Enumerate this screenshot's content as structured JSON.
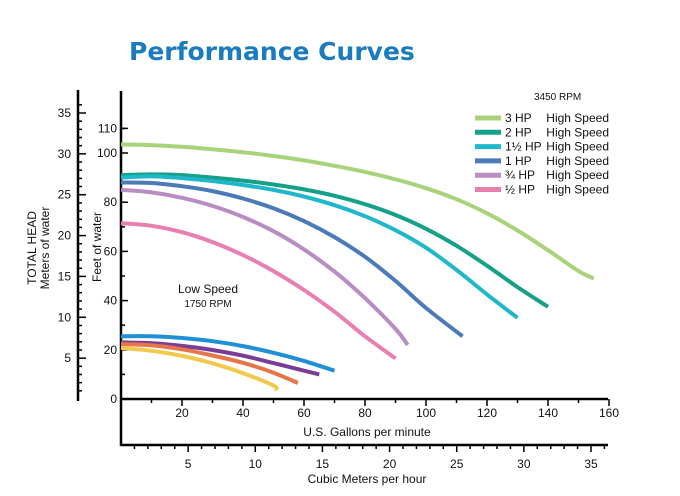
{
  "chart_data": {
    "type": "line",
    "title": "Performance Curves",
    "rpm_high": "3450 RPM",
    "low_speed_label": "Low Speed",
    "rpm_low": "1750 RPM",
    "x_primary": {
      "label": "U.S. Gallons per minute",
      "ticks": [
        "20",
        "40",
        "60",
        "80",
        "100",
        "120",
        "140",
        "160"
      ],
      "range": [
        0,
        160
      ]
    },
    "x_secondary": {
      "label": "Cubic Meters per hour",
      "ticks": [
        "5",
        "10",
        "15",
        "20",
        "25",
        "30",
        "35"
      ],
      "range": [
        0,
        36
      ]
    },
    "y_feet": {
      "label": "Feet of water",
      "ticks": [
        "0",
        "20",
        "40",
        "60",
        "80",
        "100",
        "110"
      ],
      "range": [
        0,
        120
      ]
    },
    "y_meters": {
      "label_line1": "TOTAL HEAD",
      "label_line2": "Meters of water",
      "ticks": [
        "5",
        "10",
        "15",
        "20",
        "25",
        "30",
        "35"
      ],
      "range": [
        0,
        36.6
      ]
    },
    "series": [
      {
        "name": "3 HP",
        "speed": "High Speed",
        "color": "#a9d37a",
        "x": [
          0,
          10,
          20,
          30,
          40,
          50,
          60,
          70,
          80,
          90,
          100,
          110,
          120,
          130,
          140,
          150,
          155
        ],
        "y": [
          103.5,
          103.2,
          102.5,
          101.5,
          100.3,
          98.8,
          97,
          94.8,
          92.3,
          89.3,
          85.7,
          81.2,
          75.5,
          68.5,
          60.5,
          52,
          49
        ]
      },
      {
        "name": "2 HP",
        "speed": "High Speed",
        "color": "#15a089",
        "x": [
          0,
          10,
          20,
          30,
          40,
          50,
          60,
          70,
          80,
          90,
          100,
          110,
          120,
          130,
          140
        ],
        "y": [
          91,
          91.3,
          91,
          90,
          88.8,
          87.2,
          85.2,
          82.6,
          79.2,
          74.8,
          69.2,
          62.3,
          54.2,
          45.5,
          37.5
        ]
      },
      {
        "name": "1½ HP",
        "speed": "High Speed",
        "color": "#1fb7c9",
        "x": [
          0,
          10,
          20,
          30,
          40,
          50,
          60,
          70,
          80,
          90,
          100,
          110,
          120,
          130
        ],
        "y": [
          90,
          90.5,
          89.8,
          88.6,
          87,
          85,
          82.3,
          78.8,
          74.3,
          68.6,
          61.5,
          52.5,
          42.5,
          33
        ]
      },
      {
        "name": "1 HP",
        "speed": "High Speed",
        "color": "#4a7ab8",
        "x": [
          0,
          10,
          20,
          30,
          40,
          50,
          60,
          70,
          80,
          90,
          100,
          112
        ],
        "y": [
          88,
          87.8,
          86.5,
          84.5,
          81.5,
          77.5,
          72.3,
          65.8,
          57.8,
          48,
          37,
          25.5
        ]
      },
      {
        "name": "¾ HP",
        "speed": "High Speed",
        "color": "#b98cc4",
        "x": [
          0,
          10,
          20,
          30,
          40,
          50,
          60,
          70,
          80,
          90,
          94
        ],
        "y": [
          85,
          84,
          81.8,
          78.5,
          74,
          68.2,
          60.8,
          51.8,
          41,
          28.5,
          22
        ]
      },
      {
        "name": "½ HP",
        "speed": "High Speed",
        "color": "#e97fb1",
        "x": [
          0,
          10,
          20,
          30,
          40,
          50,
          60,
          70,
          80,
          90
        ],
        "y": [
          71.5,
          70.4,
          67.8,
          63.8,
          58.5,
          52,
          44.3,
          35.5,
          25.5,
          16.5
        ]
      }
    ],
    "low_speed_series": [
      {
        "color": "#1f8fd6",
        "x": [
          0,
          10,
          20,
          30,
          40,
          50,
          60,
          70
        ],
        "y": [
          25.5,
          25.5,
          24.8,
          23.5,
          21.5,
          18.8,
          15.5,
          11.5
        ]
      },
      {
        "color": "#7a3d96",
        "x": [
          0,
          10,
          20,
          30,
          40,
          50,
          60,
          65
        ],
        "y": [
          23,
          22.7,
          21.6,
          19.9,
          17.6,
          14.6,
          11.5,
          10
        ]
      },
      {
        "color": "#e6764a",
        "x": [
          0,
          10,
          20,
          30,
          40,
          50,
          58
        ],
        "y": [
          22.3,
          21.8,
          20.2,
          17.7,
          14.7,
          10.7,
          6.5
        ]
      },
      {
        "color": "#f2c94c",
        "x": [
          0,
          10,
          20,
          30,
          40,
          50,
          51
        ],
        "y": [
          20.8,
          19.6,
          17.5,
          14.5,
          10.5,
          5.5,
          3.5
        ]
      }
    ],
    "grid": false,
    "legend_position": "top-right"
  }
}
